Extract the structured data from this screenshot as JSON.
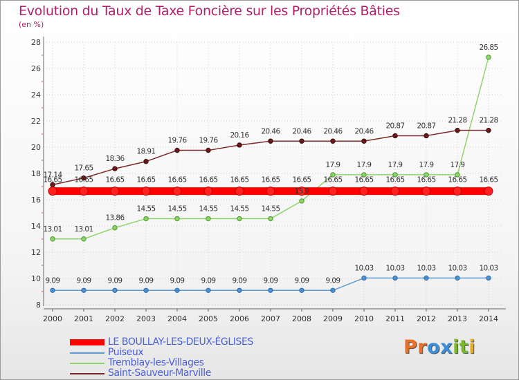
{
  "header": {
    "title": "Evolution du Taux de Taxe Foncière sur les Propriétés Bâties",
    "unit": "(en %)"
  },
  "logo": {
    "text": "Proxiti",
    "letters": [
      "P",
      "r",
      "o",
      "x",
      "i",
      "t",
      "i"
    ],
    "letter_colors": [
      "#e8712a",
      "#e8712a",
      "#3a8fd8",
      "#3a8fd8",
      "#7ab82e",
      "#7ab82e",
      "#e6b020"
    ]
  },
  "chart_data": {
    "type": "line",
    "title": "Evolution du Taux de Taxe Foncière sur les Propriétés Bâties",
    "ylabel": "(en %)",
    "xlabel": "",
    "categories": [
      "2000",
      "2001",
      "2002",
      "2003",
      "2004",
      "2005",
      "2006",
      "2007",
      "2008",
      "2009",
      "2010",
      "2011",
      "2012",
      "2013",
      "2014"
    ],
    "ylim": [
      8,
      28
    ],
    "yticks": [
      "8",
      "10",
      "12",
      "14",
      "16",
      "18",
      "20",
      "22",
      "24",
      "26",
      "28"
    ],
    "grid": true,
    "legend_position": "bottom-left",
    "series": [
      {
        "name": "LE BOULLAY-LES-DEUX-ÉGLISES",
        "color": "#ff0000",
        "values": [
          16.65,
          16.65,
          16.65,
          16.65,
          16.65,
          16.65,
          16.65,
          16.65,
          16.65,
          16.65,
          16.65,
          16.65,
          16.65,
          16.65,
          16.65
        ],
        "labels": [
          "16.65",
          "16.65",
          "16.65",
          "16.65",
          "16.65",
          "16.65",
          "16.65",
          "16.65",
          "16.65",
          "16.65",
          "16.65",
          "16.65",
          "16.65",
          "16.65",
          "16.65"
        ]
      },
      {
        "name": "Puiseux",
        "color": "#5b9bd5",
        "values": [
          9.09,
          9.09,
          9.09,
          9.09,
          9.09,
          9.09,
          9.09,
          9.09,
          9.09,
          9.09,
          10.03,
          10.03,
          10.03,
          10.03,
          10.03
        ],
        "labels": [
          "9.09",
          "9.09",
          "9.09",
          "9.09",
          "9.09",
          "9.09",
          "9.09",
          "9.09",
          "9.09",
          "9.09",
          "10.03",
          "10.03",
          "10.03",
          "10.03",
          "10.03"
        ]
      },
      {
        "name": "Tremblay-les-Villages",
        "color": "#8fd46a",
        "values": [
          13.01,
          13.01,
          13.86,
          14.55,
          14.55,
          14.55,
          14.55,
          14.55,
          15.9,
          17.9,
          17.9,
          17.9,
          17.9,
          17.9,
          26.85
        ],
        "labels": [
          "13.01",
          "13.01",
          "13.86",
          "14.55",
          "14.55",
          "14.55",
          "14.55",
          "14.55",
          "15.9",
          "17.9",
          "17.9",
          "17.9",
          "17.9",
          "17.9",
          "26.85"
        ]
      },
      {
        "name": "Saint-Sauveur-Marville",
        "color": "#7a2a2a",
        "values": [
          17.14,
          17.65,
          18.36,
          18.91,
          19.76,
          19.76,
          20.16,
          20.46,
          20.46,
          20.46,
          20.46,
          20.87,
          20.87,
          21.28,
          21.28
        ],
        "labels": [
          "17.14",
          "17.65",
          "18.36",
          "18.91",
          "19.76",
          "19.76",
          "20.16",
          "20.46",
          "20.46",
          "20.46",
          "20.46",
          "20.87",
          "20.87",
          "21.28",
          "21.28"
        ]
      }
    ]
  }
}
